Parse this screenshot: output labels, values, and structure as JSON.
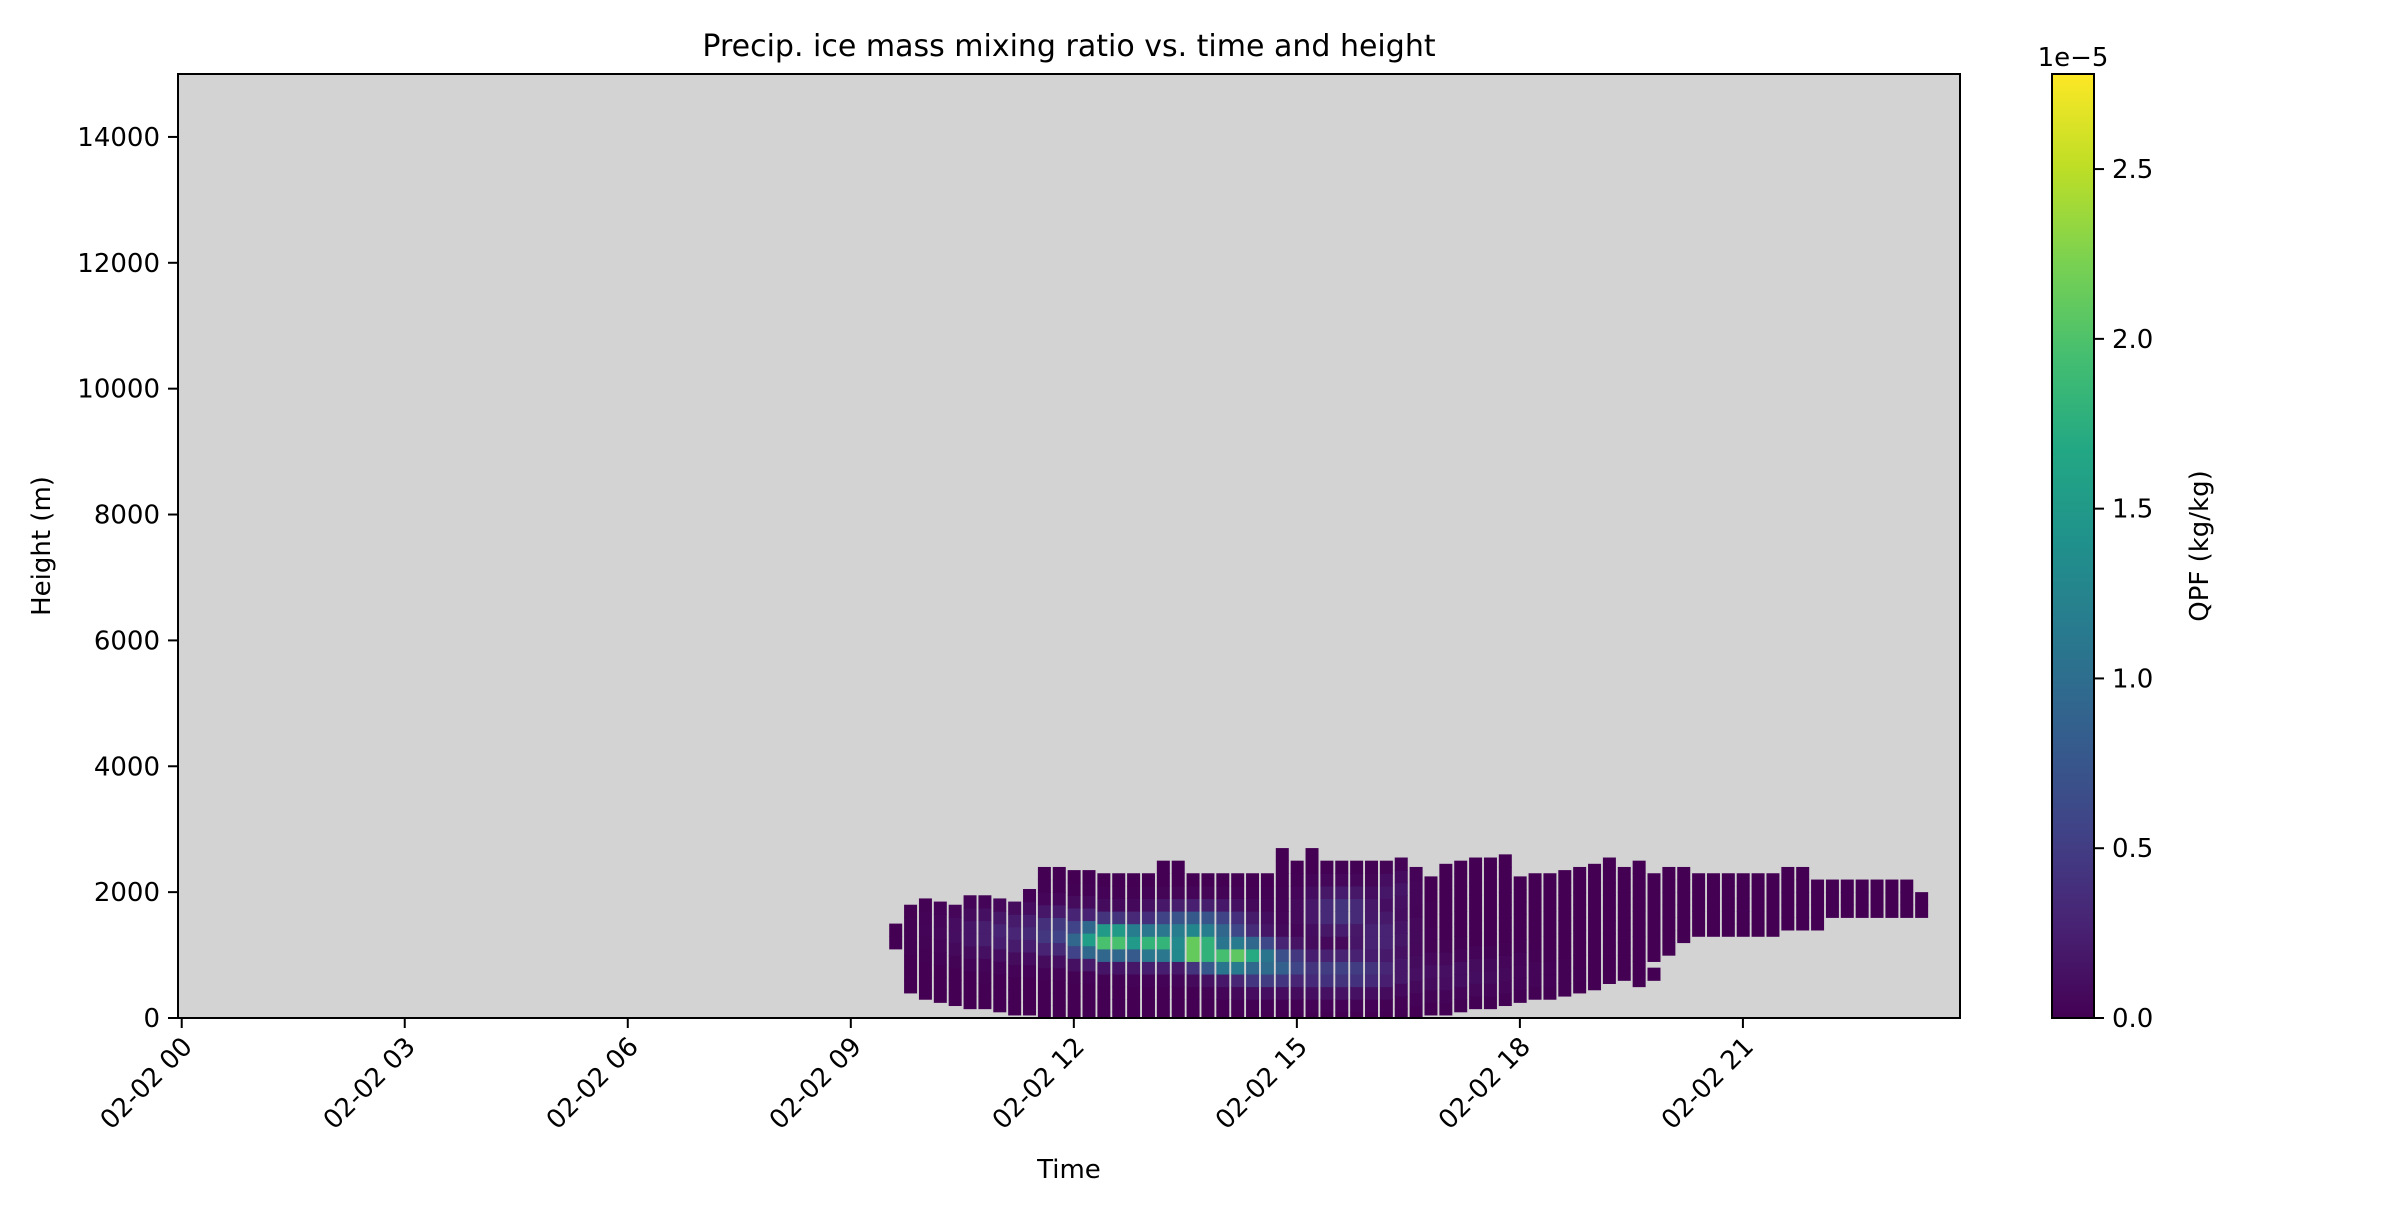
{
  "chart_data": {
    "type": "heatmap",
    "title": "Precip. ice mass mixing ratio vs. time and height",
    "xlabel": "Time",
    "ylabel": "Height (m)",
    "x_tick_labels": [
      "02-02 00",
      "02-02 03",
      "02-02 06",
      "02-02 09",
      "02-02 12",
      "02-02 15",
      "02-02 18",
      "02-02 21"
    ],
    "x_tick_hours": [
      0,
      3,
      6,
      9,
      12,
      15,
      18,
      21
    ],
    "xlim_hours": [
      -0.05,
      23.92
    ],
    "y_ticks": [
      0,
      2000,
      4000,
      6000,
      8000,
      10000,
      12000,
      14000
    ],
    "y_tick_labels": [
      "0",
      "2000",
      "4000",
      "6000",
      "8000",
      "10000",
      "12000",
      "14000"
    ],
    "ylim": [
      0,
      15000
    ],
    "masked_color": "#d3d3d3",
    "colormap": "viridis",
    "colorbar": {
      "label": "QPF (kg/kg)",
      "offset_text": "1e−5",
      "range": [
        0,
        2.78e-05
      ],
      "ticks": [
        0,
        5e-06,
        1e-05,
        1.5e-05,
        2e-05,
        2.5e-05
      ],
      "tick_labels": [
        "0.0",
        "0.5",
        "1.0",
        "1.5",
        "2.0",
        "2.5"
      ]
    },
    "cell_width_hours": 0.1667,
    "cell_height_m": 200,
    "columns": [
      [
        9.6,
        1200,
        1400
      ],
      [
        9.8,
        500,
        1800
      ],
      [
        10.0,
        400,
        1800
      ],
      [
        10.2,
        350,
        1800
      ],
      [
        10.4,
        300,
        1800
      ],
      [
        10.6,
        250,
        1900
      ],
      [
        10.8,
        250,
        1900
      ],
      [
        11.0,
        200,
        1900
      ],
      [
        11.2,
        150,
        1900
      ],
      [
        11.4,
        150,
        2100
      ],
      [
        11.6,
        100,
        2300
      ],
      [
        11.8,
        100,
        2300
      ],
      [
        12.0,
        50,
        2300
      ],
      [
        12.2,
        50,
        2300
      ],
      [
        12.4,
        0,
        2200
      ],
      [
        12.6,
        0,
        2300
      ],
      [
        12.8,
        0,
        2300
      ],
      [
        13.0,
        0,
        2300
      ],
      [
        13.2,
        0,
        2500
      ],
      [
        13.4,
        0,
        2500
      ],
      [
        13.6,
        0,
        2300
      ],
      [
        13.8,
        0,
        2300
      ],
      [
        14.0,
        0,
        2300
      ],
      [
        14.2,
        0,
        2300
      ],
      [
        14.4,
        0,
        2300
      ],
      [
        14.6,
        0,
        2300
      ],
      [
        14.8,
        0,
        2700
      ],
      [
        15.0,
        0,
        2500
      ],
      [
        15.2,
        0,
        2700
      ],
      [
        15.4,
        0,
        2500
      ],
      [
        15.6,
        0,
        2500
      ],
      [
        15.8,
        0,
        2500
      ],
      [
        16.0,
        0,
        2500
      ],
      [
        16.2,
        0,
        2500
      ],
      [
        16.4,
        50,
        2500
      ],
      [
        16.6,
        100,
        2300
      ],
      [
        16.8,
        150,
        2300
      ],
      [
        17.0,
        150,
        2500
      ],
      [
        17.2,
        200,
        2500
      ],
      [
        17.4,
        250,
        2500
      ],
      [
        17.6,
        250,
        2500
      ],
      [
        17.8,
        300,
        2500
      ],
      [
        18.0,
        350,
        2300
      ],
      [
        18.2,
        400,
        2300
      ],
      [
        18.4,
        400,
        2300
      ],
      [
        18.6,
        450,
        2300
      ],
      [
        18.8,
        500,
        2300
      ],
      [
        19.0,
        550,
        2500
      ],
      [
        19.2,
        650,
        2500
      ],
      [
        19.4,
        700,
        2300
      ],
      [
        19.6,
        800,
        2500
      ],
      [
        19.8,
        1000,
        2300
      ],
      [
        20.0,
        1100,
        2300
      ],
      [
        20.2,
        1300,
        2300
      ],
      [
        20.4,
        1400,
        2300
      ],
      [
        20.6,
        1400,
        2300
      ],
      [
        20.8,
        1400,
        2300
      ],
      [
        21.0,
        1400,
        2300
      ],
      [
        21.2,
        1400,
        2300
      ],
      [
        21.4,
        1400,
        2300
      ],
      [
        21.6,
        1500,
        2300
      ],
      [
        21.8,
        1500,
        2300
      ],
      [
        22.0,
        1500,
        2200
      ],
      [
        22.2,
        1700,
        2200
      ],
      [
        22.4,
        1700,
        2200
      ],
      [
        22.6,
        1700,
        2200
      ],
      [
        22.8,
        1700,
        2100
      ],
      [
        23.0,
        1700,
        2100
      ],
      [
        23.2,
        1700,
        2100
      ],
      [
        23.4,
        1700,
        1900
      ]
    ],
    "isolated_cells": [
      [
        19.6,
        600
      ],
      [
        19.8,
        700
      ]
    ],
    "hotspots": [
      [
        13.65,
        1100,
        2.78e-05,
        0.35,
        200
      ],
      [
        12.5,
        1250,
        2.1e-05,
        0.55,
        280
      ],
      [
        13.1,
        1200,
        1.9e-05,
        0.5,
        280
      ],
      [
        14.15,
        1000,
        2.1e-05,
        0.55,
        260
      ],
      [
        13.6,
        1350,
        1.3e-05,
        0.7,
        350
      ],
      [
        14.6,
        850,
        1e-05,
        0.55,
        300
      ],
      [
        12.0,
        1350,
        6e-06,
        0.8,
        350
      ],
      [
        11.1,
        1350,
        3e-06,
        0.7,
        350
      ],
      [
        15.6,
        750,
        5.5e-06,
        0.8,
        300
      ],
      [
        15.6,
        1700,
        4.5e-06,
        0.45,
        350
      ],
      [
        16.1,
        1300,
        3e-06,
        0.4,
        500
      ],
      [
        16.3,
        2000,
        2e-06,
        0.25,
        300
      ],
      [
        17.0,
        700,
        1.2e-06,
        1.0,
        300
      ]
    ]
  }
}
